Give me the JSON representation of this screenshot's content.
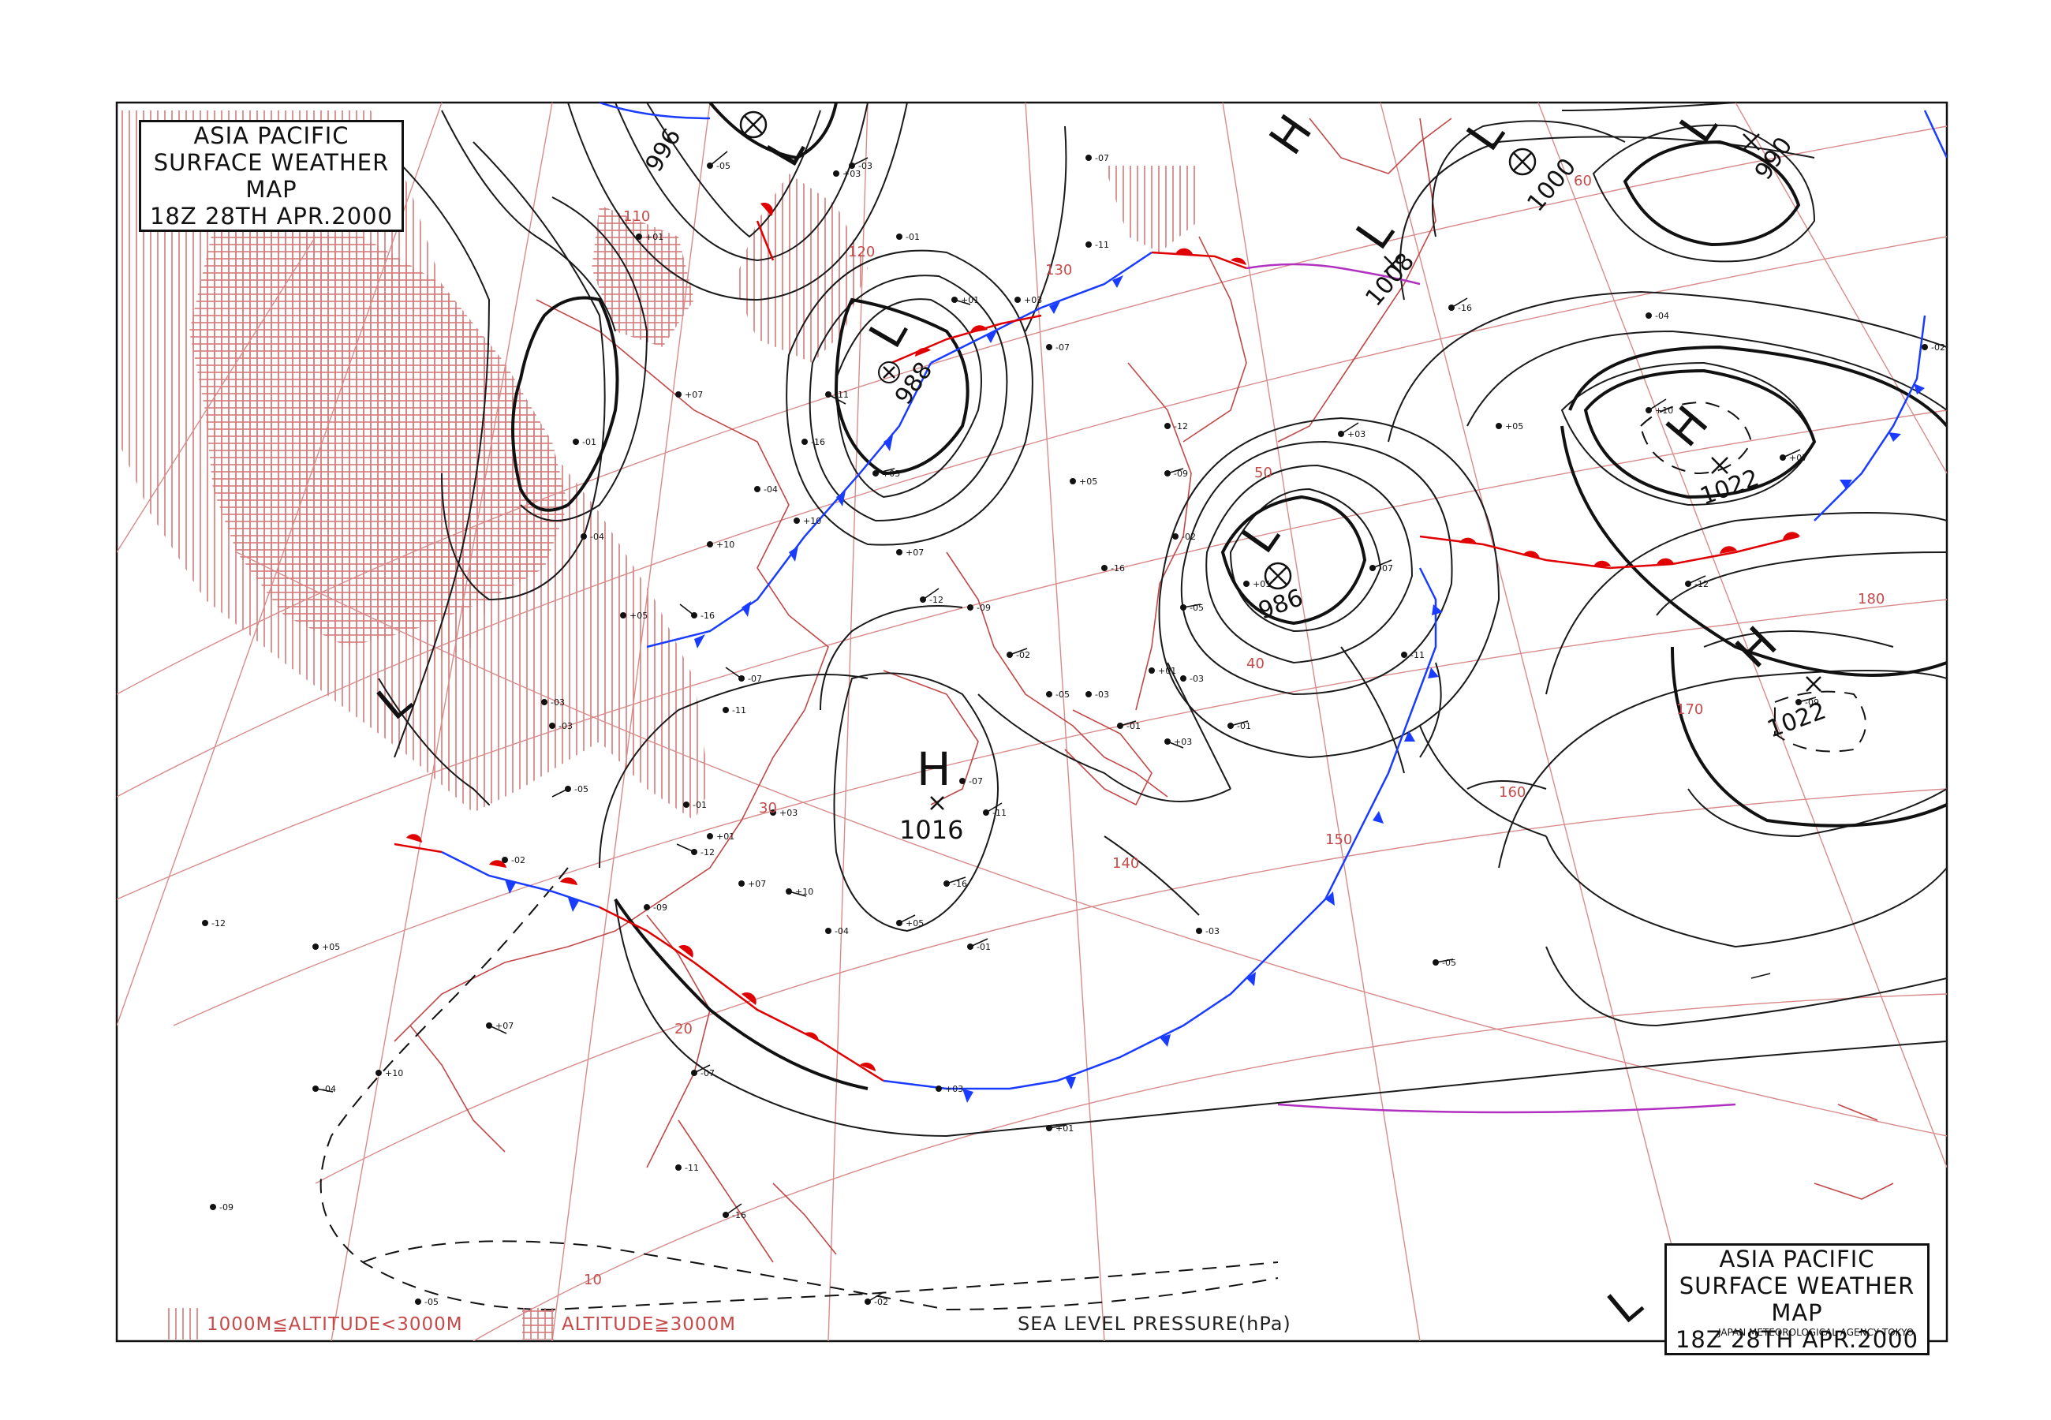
{
  "title_top_left": {
    "line1": "ASIA PACIFIC",
    "line2": "SURFACE WEATHER MAP",
    "line3": "18Z 28TH APR.2000"
  },
  "title_bottom_right": {
    "line1": "ASIA PACIFIC",
    "line2": "SURFACE WEATHER MAP",
    "line3": "18Z 28TH APR.2000"
  },
  "legend": {
    "altitude_mid": "1000M≦ALTITUDE<3000M",
    "altitude_high": "ALTITUDE≧3000M"
  },
  "pressure_label": "SEA LEVEL PRESSURE(hPa)",
  "agency": "JAPAN METEOROLOGICAL AGENCY TOKYO",
  "colors": {
    "grid": "#d98b8b",
    "coast": "#c24848",
    "isobar": "#1a1a1a",
    "cold_front": "#1a3cff",
    "warm_front": "#e00000",
    "occluded": "#b030c0",
    "terrain": "#d47a7a"
  },
  "pressure_systems": [
    {
      "type": "L",
      "value": "996"
    },
    {
      "type": "L",
      "value": "988"
    },
    {
      "type": "L",
      "value": "986"
    },
    {
      "type": "L",
      "value": "1008"
    },
    {
      "type": "L",
      "value": "1000"
    },
    {
      "type": "L",
      "value": "990"
    },
    {
      "type": "H",
      "value": "1016"
    },
    {
      "type": "H",
      "value": "1022"
    },
    {
      "type": "H",
      "value": "1022"
    },
    {
      "type": "H",
      "value": ""
    },
    {
      "type": "L",
      "value": ""
    },
    {
      "type": "L",
      "value": ""
    }
  ],
  "grid_labels": {
    "longitudes": [
      "110",
      "120",
      "130",
      "140",
      "150",
      "160",
      "170",
      "180"
    ],
    "latitudes": [
      "10",
      "20",
      "30",
      "40",
      "50",
      "60"
    ]
  },
  "station_codes": [
    "-05",
    "-03",
    "-01",
    "+01",
    "+03",
    "-07",
    "-11",
    "-16",
    "+05",
    "-04",
    "+10",
    "+07",
    "-12",
    "-09",
    "-02"
  ]
}
